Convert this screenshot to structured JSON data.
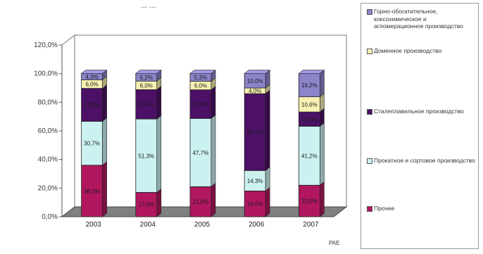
{
  "chart_data": {
    "type": "stacked-bar",
    "title_fragment": "... ...",
    "categories": [
      "2003",
      "2004",
      "2005",
      "2006",
      "2007"
    ],
    "ylim": [
      0,
      120
    ],
    "yticks": [
      "0,0%",
      "20,0%",
      "40,0%",
      "60,0%",
      "80,0%",
      "100,0%",
      "120,0%"
    ],
    "grid": false,
    "legend_position": "right",
    "source_note": "РАЕ",
    "series": [
      {
        "name": "Прочее",
        "color": "#b0175f",
        "values": [
          36.0,
          17.0,
          21.0,
          18.0,
          22.0
        ],
        "labels": [
          "36,0%",
          "17,0%",
          "21,0%",
          "18,0%",
          "22,0%"
        ]
      },
      {
        "name": "Прокатное и сортовое производство",
        "color": "#ccf1f1",
        "values": [
          30.7,
          51.3,
          47.7,
          14.3,
          41.2
        ],
        "labels": [
          "30,7%",
          "51,3%",
          "47,7%",
          "14,3%",
          "41,2%"
        ]
      },
      {
        "name": "Сталеплавильное производство",
        "color": "#4c1166",
        "values": [
          23.0,
          20.5,
          20.0,
          53.7,
          10.0
        ],
        "labels": [
          "23,0%",
          "20,5%",
          "20,0%",
          "53,7%",
          "10,0%"
        ]
      },
      {
        "name": "Доменное производство",
        "color": "#f6f1b1",
        "values": [
          6.0,
          6.0,
          6.0,
          4.0,
          10.6
        ],
        "labels": [
          "6,0%",
          "6,0%",
          "6,0%",
          "4,0%",
          "10,6%"
        ]
      },
      {
        "name": "Горно-обогатительное, коксохимическое и агломерационное производство",
        "color": "#8b84c9",
        "values": [
          4.3,
          5.2,
          5.3,
          10.0,
          16.2
        ],
        "labels": [
          "4,3%",
          "5,2%",
          "5,3%",
          "10,0%",
          "16,2%"
        ]
      }
    ]
  }
}
